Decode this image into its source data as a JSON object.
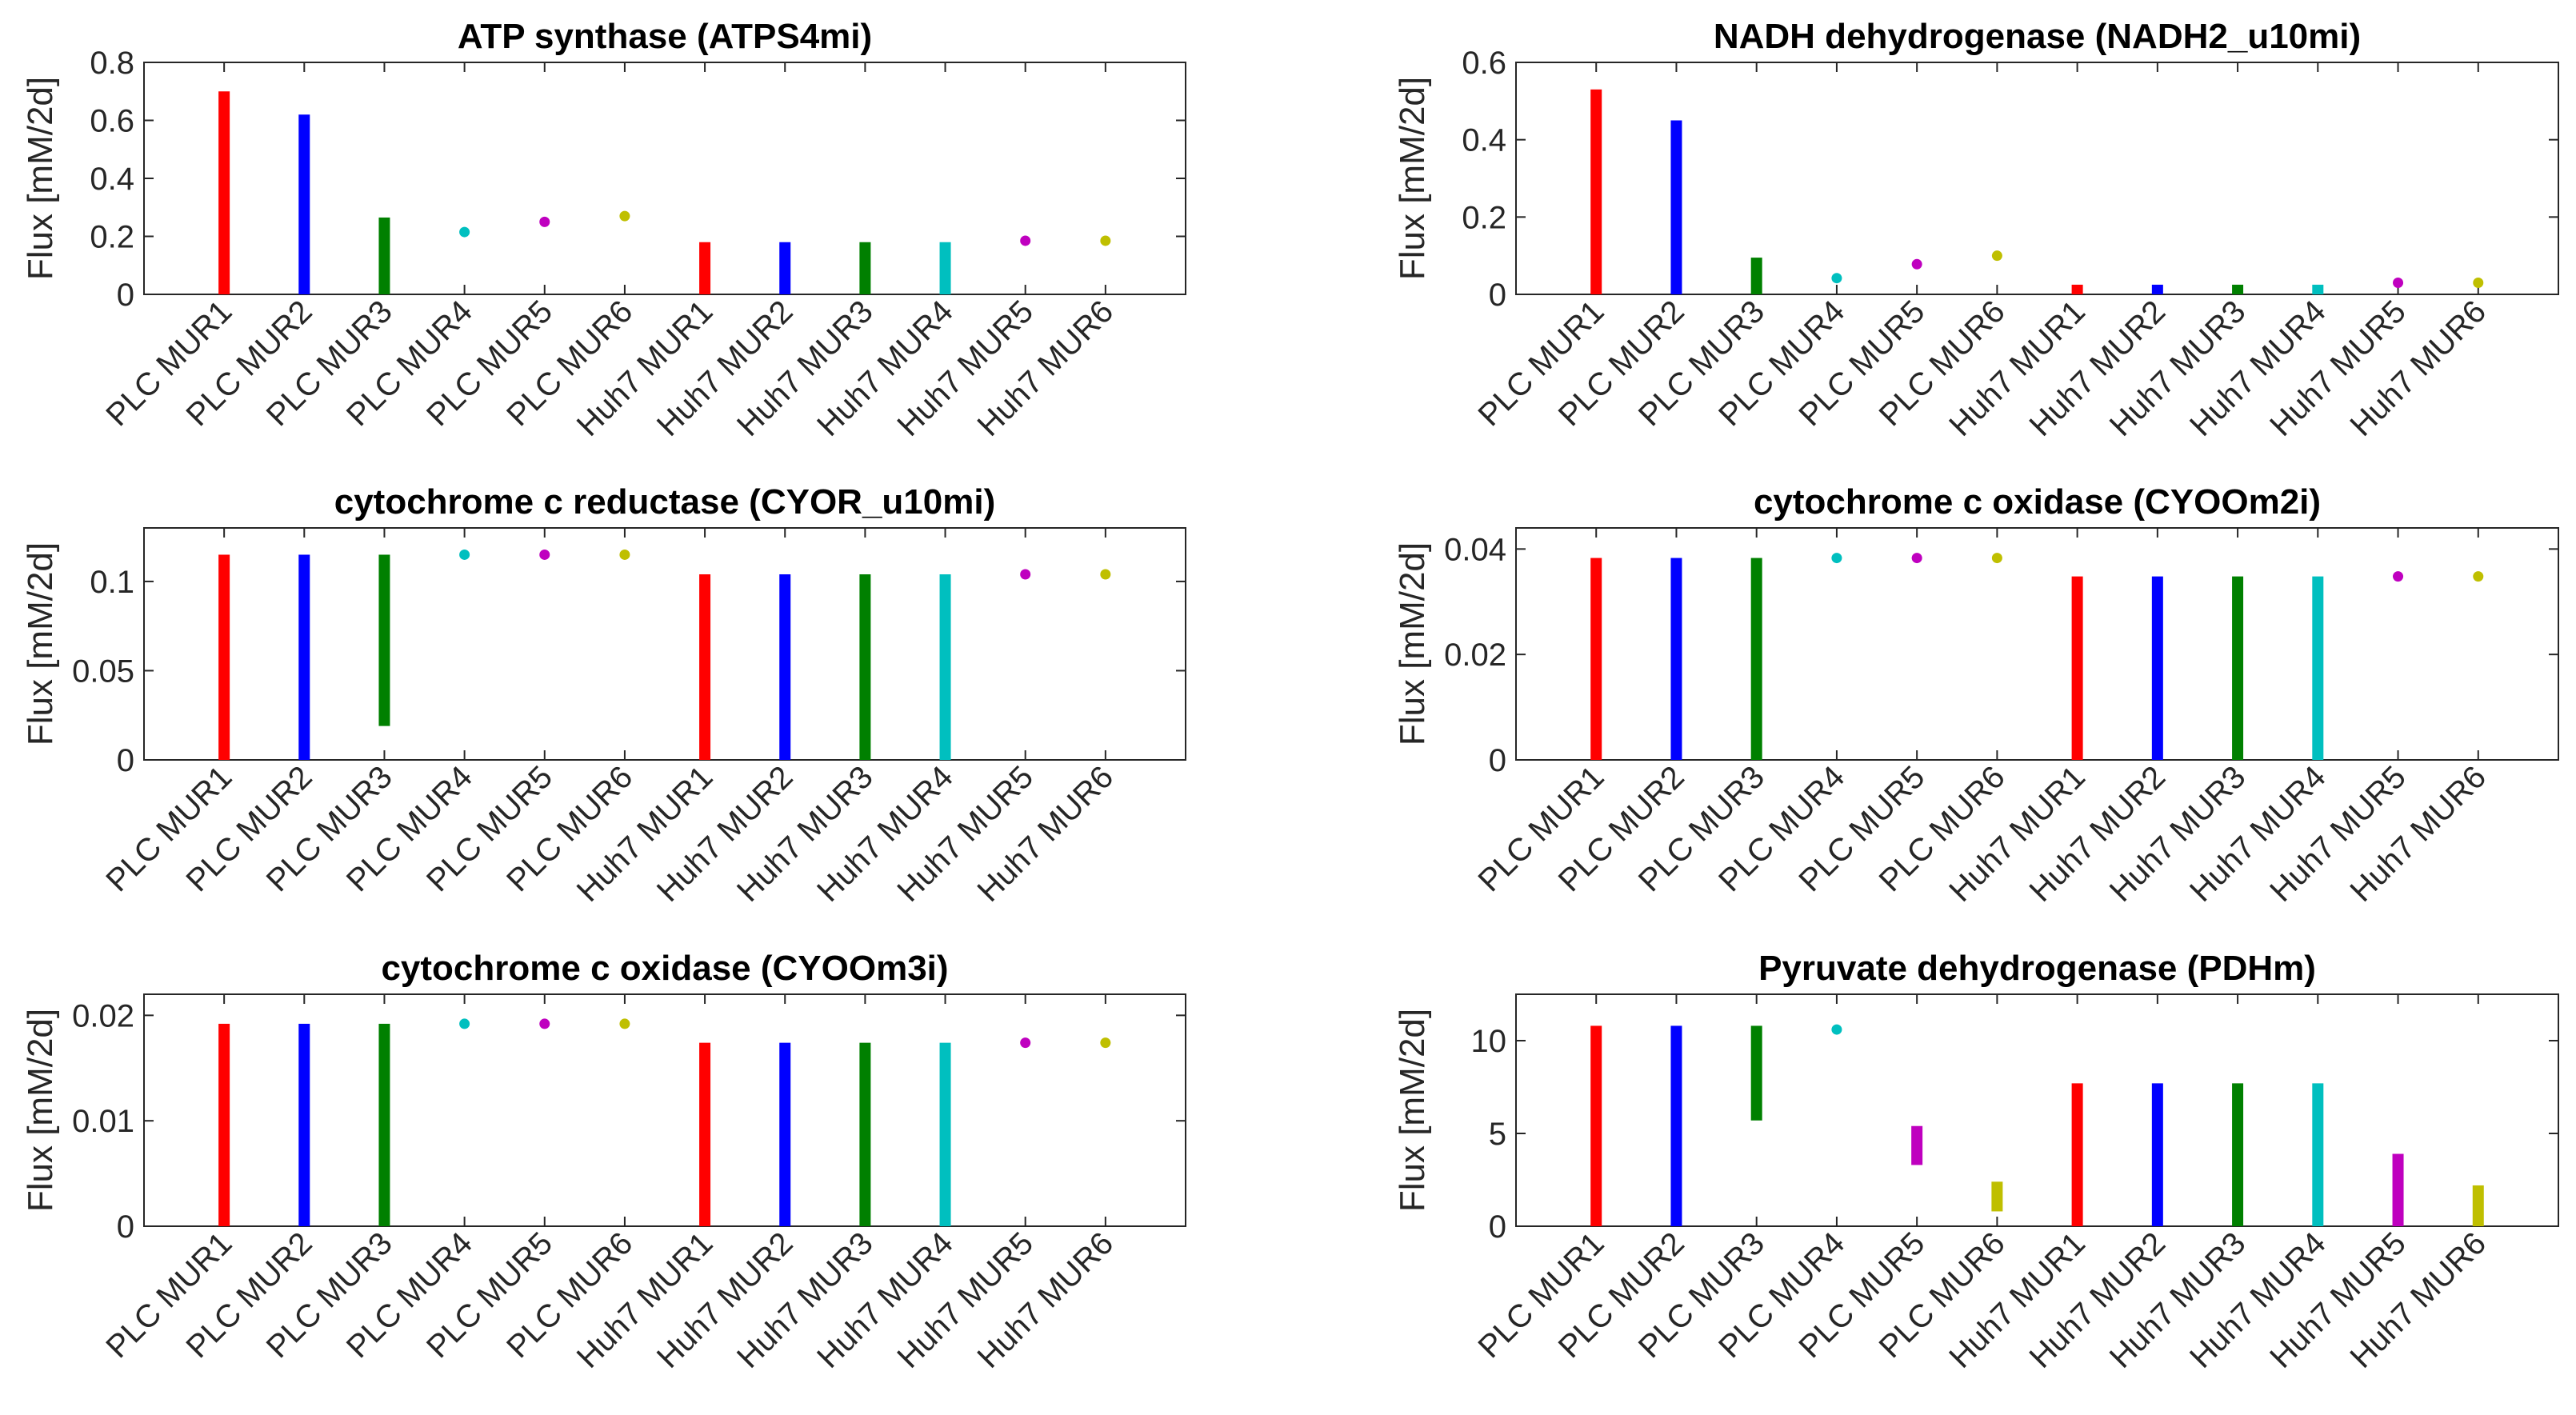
{
  "categories": [
    "PLC MUR1",
    "PLC MUR2",
    "PLC MUR3",
    "PLC MUR4",
    "PLC MUR5",
    "PLC MUR6",
    "Huh7 MUR1",
    "Huh7 MUR2",
    "Huh7 MUR3",
    "Huh7 MUR4",
    "Huh7 MUR5",
    "Huh7 MUR6"
  ],
  "colors": [
    "#ff0000",
    "#0000ff",
    "#008000",
    "#00bfbf",
    "#bf00bf",
    "#bfbf00",
    "#ff0000",
    "#0000ff",
    "#008000",
    "#00bfbf",
    "#bf00bf",
    "#bfbf00"
  ],
  "chart_data": [
    {
      "type": "bar",
      "title": "ATP synthase (ATPS4mi)",
      "ylabel": "Flux [mM/2d]",
      "ylim": [
        0,
        0.8
      ],
      "yticks": [
        "0",
        "0.2",
        "0.4",
        "0.6",
        "0.8"
      ],
      "ytick_values": [
        0,
        0.2,
        0.4,
        0.6,
        0.8
      ],
      "ranges": [
        [
          0,
          0.7
        ],
        [
          0,
          0.62
        ],
        [
          0,
          0.265
        ],
        [
          0.215,
          0.215
        ],
        [
          0.25,
          0.25
        ],
        [
          0.27,
          0.27
        ],
        [
          0,
          0.18
        ],
        [
          0,
          0.18
        ],
        [
          0,
          0.18
        ],
        [
          0,
          0.18
        ],
        [
          0.185,
          0.185
        ],
        [
          0.185,
          0.185
        ]
      ]
    },
    {
      "type": "bar",
      "title": "NADH dehydrogenase (NADH2_u10mi)",
      "ylabel": "Flux [mM/2d]",
      "ylim": [
        0,
        0.6
      ],
      "yticks": [
        "0",
        "0.2",
        "0.4",
        "0.6"
      ],
      "ytick_values": [
        0,
        0.2,
        0.4,
        0.6
      ],
      "ranges": [
        [
          0,
          0.53
        ],
        [
          0,
          0.45
        ],
        [
          0,
          0.095
        ],
        [
          0.042,
          0.042
        ],
        [
          0.078,
          0.078
        ],
        [
          0.1,
          0.1
        ],
        [
          0,
          0.025
        ],
        [
          0,
          0.025
        ],
        [
          0,
          0.025
        ],
        [
          0,
          0.025
        ],
        [
          0.03,
          0.03
        ],
        [
          0.03,
          0.03
        ]
      ]
    },
    {
      "type": "bar",
      "title": "cytochrome c reductase (CYOR_u10mi)",
      "ylabel": "Flux [mM/2d]",
      "ylim": [
        0,
        0.13
      ],
      "yticks": [
        "0",
        "0.05",
        "0.1"
      ],
      "ytick_values": [
        0,
        0.05,
        0.1
      ],
      "ranges": [
        [
          0,
          0.115
        ],
        [
          0,
          0.115
        ],
        [
          0.019,
          0.115
        ],
        [
          0.115,
          0.115
        ],
        [
          0.115,
          0.115
        ],
        [
          0.115,
          0.115
        ],
        [
          0,
          0.104
        ],
        [
          0,
          0.104
        ],
        [
          0,
          0.104
        ],
        [
          0,
          0.104
        ],
        [
          0.104,
          0.104
        ],
        [
          0.104,
          0.104
        ]
      ]
    },
    {
      "type": "bar",
      "title": "cytochrome c oxidase (CYOOm2i)",
      "ylabel": "Flux [mM/2d]",
      "ylim": [
        0,
        0.044
      ],
      "yticks": [
        "0",
        "0.02",
        "0.04"
      ],
      "ytick_values": [
        0,
        0.02,
        0.04
      ],
      "ranges": [
        [
          0,
          0.0383
        ],
        [
          0,
          0.0383
        ],
        [
          0,
          0.0383
        ],
        [
          0.0383,
          0.0383
        ],
        [
          0.0383,
          0.0383
        ],
        [
          0.0383,
          0.0383
        ],
        [
          0,
          0.0348
        ],
        [
          0,
          0.0348
        ],
        [
          0,
          0.0348
        ],
        [
          0,
          0.0348
        ],
        [
          0.0348,
          0.0348
        ],
        [
          0.0348,
          0.0348
        ]
      ]
    },
    {
      "type": "bar",
      "title": "cytochrome c oxidase (CYOOm3i)",
      "ylabel": "Flux [mM/2d]",
      "ylim": [
        0,
        0.022
      ],
      "yticks": [
        "0",
        "0.01",
        "0.02"
      ],
      "ytick_values": [
        0,
        0.01,
        0.02
      ],
      "ranges": [
        [
          0,
          0.0192
        ],
        [
          0,
          0.0192
        ],
        [
          0,
          0.0192
        ],
        [
          0.0192,
          0.0192
        ],
        [
          0.0192,
          0.0192
        ],
        [
          0.0192,
          0.0192
        ],
        [
          0,
          0.0174
        ],
        [
          0,
          0.0174
        ],
        [
          0,
          0.0174
        ],
        [
          0,
          0.0174
        ],
        [
          0.0174,
          0.0174
        ],
        [
          0.0174,
          0.0174
        ]
      ]
    },
    {
      "type": "bar",
      "title": "Pyruvate dehydrogenase (PDHm)",
      "ylabel": "Flux [mM/2d]",
      "ylim": [
        0,
        12.5
      ],
      "yticks": [
        "0",
        "5",
        "10"
      ],
      "ytick_values": [
        0,
        5,
        10
      ],
      "ranges": [
        [
          0,
          10.8
        ],
        [
          0,
          10.8
        ],
        [
          5.7,
          10.8
        ],
        [
          10.6,
          10.6
        ],
        [
          3.3,
          5.4
        ],
        [
          0.8,
          2.4
        ],
        [
          0,
          7.7
        ],
        [
          0,
          7.7
        ],
        [
          0,
          7.7
        ],
        [
          0,
          7.7
        ],
        [
          0,
          3.9
        ],
        [
          0,
          2.2
        ]
      ]
    }
  ]
}
